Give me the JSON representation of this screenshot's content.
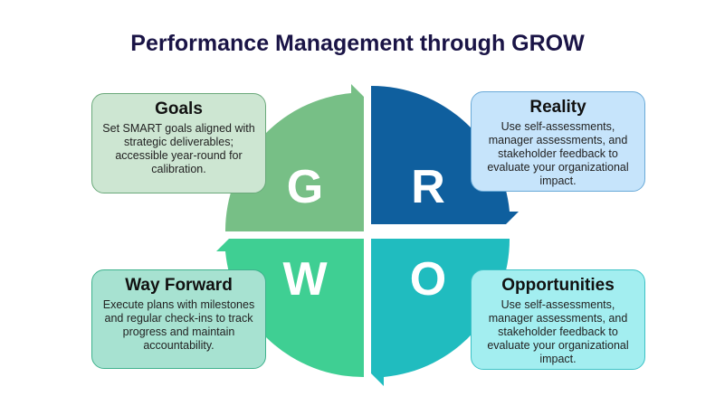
{
  "title": "Performance Management through GROW",
  "colors": {
    "g": "#77bf86",
    "r": "#0f5f9e",
    "w": "#3fcf93",
    "o": "#20bcbf"
  },
  "quadrants": [
    {
      "letter": "G",
      "heading": "Goals",
      "body": "Set SMART goals aligned with strategic deliverables; accessible year-round for calibration."
    },
    {
      "letter": "R",
      "heading": "Reality",
      "body": "Use self-assessments, manager assessments, and stakeholder feedback to evaluate your organizational impact."
    },
    {
      "letter": "W",
      "heading": "Way Forward",
      "body": "Execute plans with milestones and regular check-ins to track progress and maintain accountability."
    },
    {
      "letter": "O",
      "heading": "Opportunities",
      "body": "Use self-assessments, manager assessments, and stakeholder feedback to evaluate your organizational impact."
    }
  ]
}
